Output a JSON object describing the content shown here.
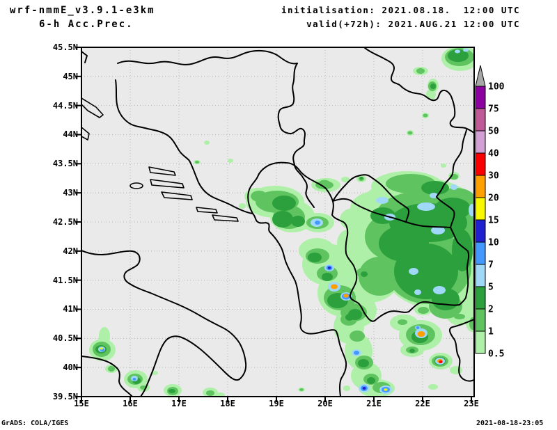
{
  "header": {
    "model": "wrf-nmmE_v3.9.1-e3km",
    "field": "6-h Acc.Prec.",
    "init": "initialisation: 2021.08.18.  12:00 UTC",
    "valid": "valid(+72h): 2021.AUG.21 12:00 UTC"
  },
  "footer": {
    "left": "GrADS: COLA/IGES",
    "right": "2021-08-18-23:05"
  },
  "axes": {
    "y_labels": [
      "45.5N",
      "45N",
      "44.5N",
      "44N",
      "43.5N",
      "43N",
      "42.5N",
      "42N",
      "41.5N",
      "41N",
      "40.5N",
      "40N",
      "39.5N"
    ],
    "x_labels": [
      "15E",
      "16E",
      "17E",
      "18E",
      "19E",
      "20E",
      "21E",
      "22E",
      "23E"
    ]
  },
  "colorbar": {
    "levels": [
      "0.5",
      "1",
      "2",
      "5",
      "7",
      "10",
      "15",
      "20",
      "30",
      "40",
      "50",
      "75",
      "100"
    ],
    "segment_colors": [
      "#aef0a8",
      "#5fc360",
      "#2ba03c",
      "#a0d8f8",
      "#4499ff",
      "#2020d0",
      "#f8f800",
      "#ffa000",
      "#fa0000",
      "#d2a0d2",
      "#c05a96",
      "#8c00a0"
    ],
    "overflow_color": "#a8a8a8"
  },
  "map_colors": {
    "background": "#eaeaea",
    "gridline": "#b5b5b5",
    "coastline": "#000000"
  },
  "chart_data": {
    "type": "heatmap",
    "title": "wrf-nmmE_v3.9.1-e3km 6-h Acc.Prec.",
    "initialisation": "2021.08.18. 12:00 UTC",
    "valid": "+72h, 2021.AUG.21 12:00 UTC",
    "xlim": [
      15,
      23
    ],
    "ylim": [
      39.5,
      45.5
    ],
    "x_ticks": [
      "15E",
      "16E",
      "17E",
      "18E",
      "19E",
      "20E",
      "21E",
      "22E",
      "23E"
    ],
    "y_ticks": [
      "39.5N",
      "40N",
      "40.5N",
      "41N",
      "41.5N",
      "42N",
      "42.5N",
      "43N",
      "43.5N",
      "44N",
      "44.5N",
      "45N",
      "45.5N"
    ],
    "grid": "dotted, 1 deg lon x 0.5 deg lat",
    "legend_position": "right",
    "legend_levels": [
      0.5,
      1,
      2,
      5,
      7,
      10,
      15,
      20,
      30,
      40,
      50,
      75,
      100
    ],
    "legend_colors": [
      "#aef0a8",
      "#5fc360",
      "#2ba03c",
      "#a0d8f8",
      "#4499ff",
      "#2020d0",
      "#f8f800",
      "#ffa000",
      "#fa0000",
      "#d2a0d2",
      "#c05a96",
      "#8c00a0",
      "#a8a8a8"
    ],
    "regions": [
      "widespread 0.5-5 with embedded 5-7 patches over SE Serbia / W Bulgaria / N Macedonia (largest shaded area, approx 21-23E, 41-43N)",
      "scattered 0.5-5 showers over Montenegro and N Albania (19-20E, 42-43N)",
      "isolated strong convective cells (20-40) over S Albania, N Macedonia and NW Greece",
      "isolated cells over S Italy (Calabria / Basilicata, 15.4-16.8E, 39.5-40.5N)",
      "small shower cluster with 5-7 cores in NE corner near 22.8E, 45.3N"
    ],
    "cells": [
      {
        "lon": 20.2,
        "lat": 41.4,
        "peak_level": "20-30"
      },
      {
        "lon": 20.45,
        "lat": 41.25,
        "peak_level": "20-30"
      },
      {
        "lon": 19.85,
        "lat": 42.5,
        "peak_level": "7-10"
      },
      {
        "lon": 19.6,
        "lat": 41.7,
        "peak_level": "10-15"
      },
      {
        "lon": 21.95,
        "lat": 40.55,
        "peak_level": "20-30"
      },
      {
        "lon": 22.35,
        "lat": 40.1,
        "peak_level": "30-40"
      },
      {
        "lon": 21.25,
        "lat": 39.6,
        "peak_level": "15-20"
      },
      {
        "lon": 20.8,
        "lat": 39.65,
        "peak_level": "10-15"
      },
      {
        "lon": 20.65,
        "lat": 40.25,
        "peak_level": "10-15"
      },
      {
        "lon": 15.45,
        "lat": 40.3,
        "peak_level": "15-20"
      },
      {
        "lon": 16.1,
        "lat": 39.8,
        "peak_level": "10-15"
      },
      {
        "lon": 21.9,
        "lat": 42.1,
        "peak_level": "5-7"
      },
      {
        "lon": 22.8,
        "lat": 45.3,
        "peak_level": "5-7"
      }
    ]
  }
}
